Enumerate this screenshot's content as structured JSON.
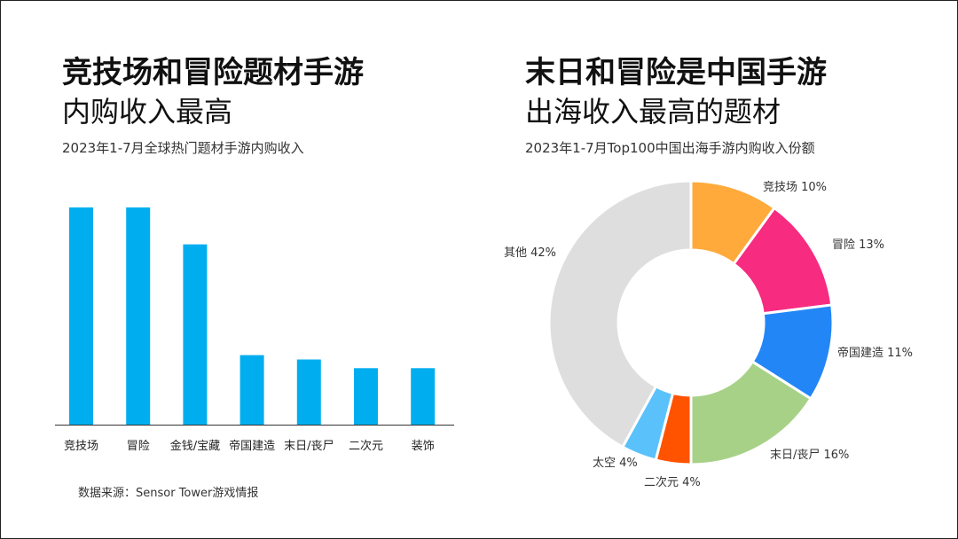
{
  "left": {
    "title_line1": "竞技场和冒险题材手游",
    "title_line2": "内购收入最高",
    "subtitle": "2023年1-7月全球热门题材手游内购收入",
    "source": "数据来源：Sensor Tower游戏情报"
  },
  "right": {
    "title_line1": "末日和冒险是中国手游",
    "title_line2": "出海收入最高的题材",
    "subtitle": "2023年1-7月Top100中国出海手游内购收入份额"
  },
  "chart_data": [
    {
      "type": "bar",
      "categories": [
        "竞技场",
        "冒险",
        "金钱/宝藏",
        "帝国建造",
        "末日/丧尸",
        "二次元",
        "装饰"
      ],
      "values": [
        100,
        100,
        83,
        32,
        30,
        26,
        26
      ],
      "ylim": [
        0,
        100
      ],
      "grid": false,
      "color": "#00AEEF"
    },
    {
      "type": "pie",
      "donut": true,
      "slices": [
        {
          "label": "竞技场 10%",
          "value": 10,
          "color": "#FFAA3B"
        },
        {
          "label": "冒险 13%",
          "value": 13,
          "color": "#F72B80"
        },
        {
          "label": "帝国建造 11%",
          "value": 11,
          "color": "#2386F7"
        },
        {
          "label": "末日/丧尸 16%",
          "value": 16,
          "color": "#A8D188"
        },
        {
          "label": "二次元 4%",
          "value": 4,
          "color": "#FF5300"
        },
        {
          "label": "太空 4%",
          "value": 4,
          "color": "#5BC1FA"
        },
        {
          "label": "其他 42%",
          "value": 42,
          "color": "#DEDEDE"
        }
      ]
    }
  ]
}
